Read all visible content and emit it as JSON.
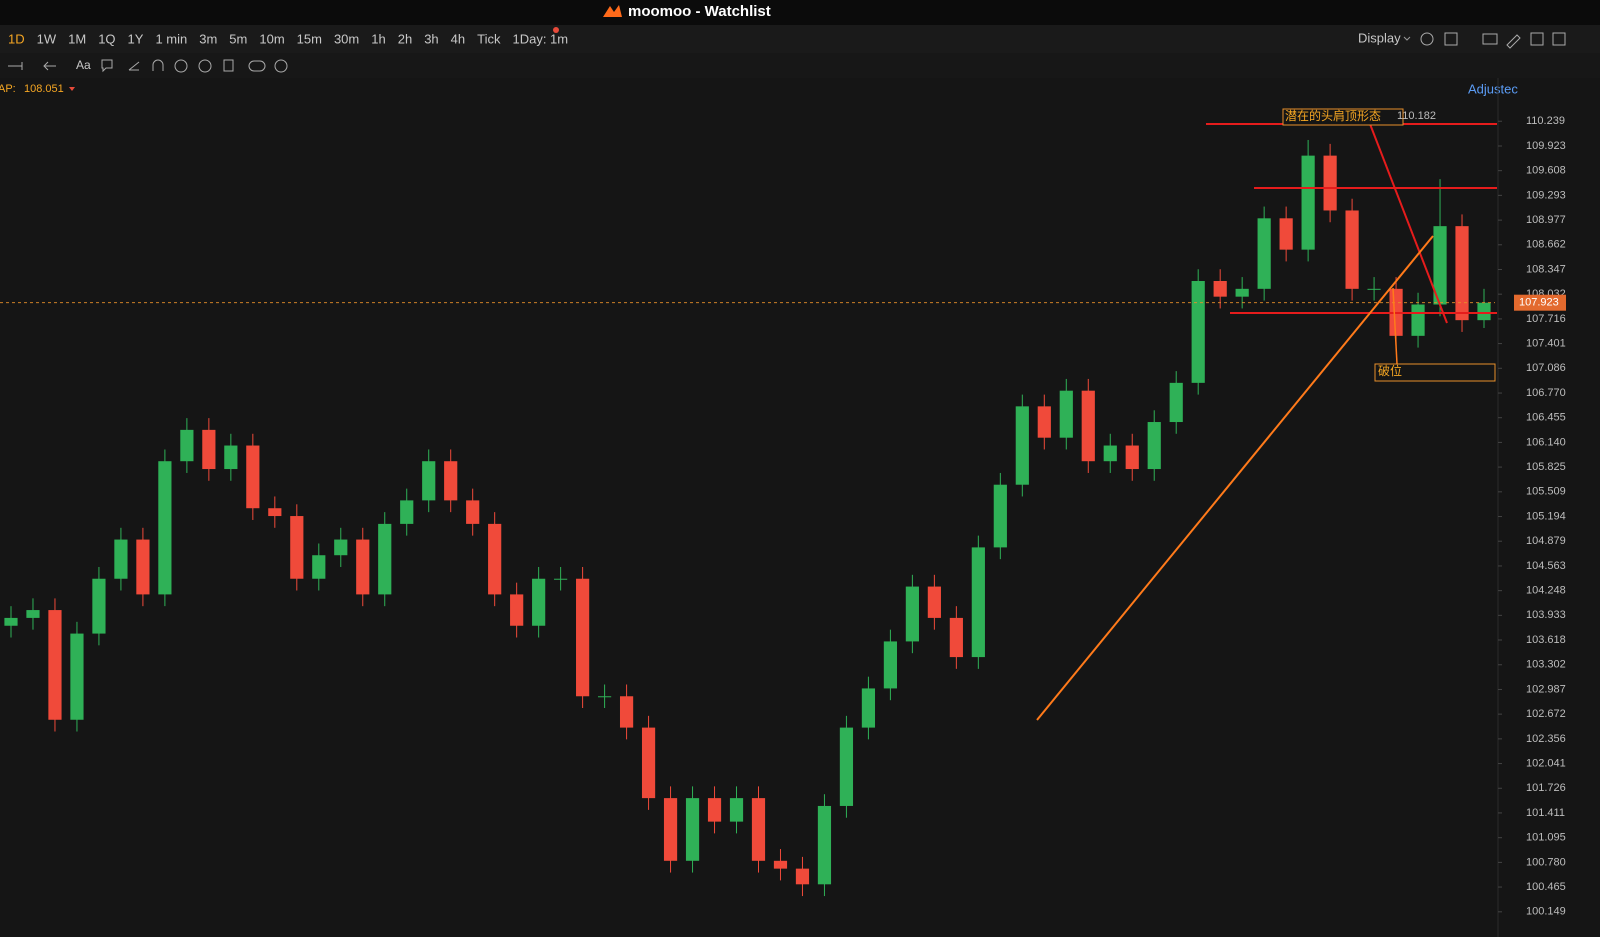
{
  "window": {
    "title": "moomoo - Watchlist"
  },
  "toolbar": {
    "periods": [
      "1D",
      "1W",
      "1M",
      "1Q",
      "1Y",
      "1 min",
      "3m",
      "5m",
      "10m",
      "15m",
      "30m",
      "1h",
      "2h",
      "3h",
      "4h",
      "Tick",
      "1Day: 1m"
    ],
    "display": "Display"
  },
  "indicator": {
    "label": "AP:",
    "value": "108.051"
  },
  "adjust": "Adjustec",
  "chart_data": {
    "type": "candlestick",
    "open": [
      103.8,
      103.9,
      104.0,
      102.6,
      103.7,
      104.4,
      104.9,
      104.2,
      105.9,
      106.3,
      105.8,
      106.1,
      105.3,
      105.2,
      104.4,
      104.7,
      104.9,
      104.2,
      105.1,
      105.4,
      105.9,
      105.4,
      105.1,
      104.2,
      103.8,
      104.4,
      104.4,
      102.9,
      102.9,
      102.5,
      101.6,
      100.8,
      101.6,
      101.3,
      101.6,
      100.8,
      100.7,
      100.5,
      101.5,
      102.5,
      103.0,
      103.6,
      104.3,
      103.9,
      103.4,
      104.8,
      105.6,
      106.6,
      106.2,
      106.8,
      105.9,
      106.1,
      105.8,
      106.4,
      106.9,
      108.2,
      108.0,
      108.1,
      109.0,
      108.6,
      109.8,
      109.1,
      108.1,
      108.1,
      107.5,
      107.9,
      108.9,
      107.7
    ],
    "high": [
      104.05,
      104.15,
      104.15,
      103.85,
      104.55,
      105.05,
      105.05,
      106.05,
      106.45,
      106.45,
      106.25,
      106.25,
      105.45,
      105.35,
      104.85,
      105.05,
      105.05,
      105.25,
      105.55,
      106.05,
      106.05,
      105.55,
      105.25,
      104.35,
      104.55,
      104.55,
      104.55,
      103.05,
      103.05,
      102.65,
      101.75,
      101.75,
      101.75,
      101.75,
      101.75,
      100.95,
      100.85,
      101.65,
      102.65,
      103.15,
      103.75,
      104.45,
      104.45,
      104.05,
      104.95,
      105.75,
      106.75,
      106.75,
      106.95,
      106.95,
      106.25,
      106.25,
      106.55,
      107.05,
      108.35,
      108.35,
      108.25,
      109.15,
      109.15,
      110.0,
      109.95,
      109.25,
      108.25,
      108.25,
      108.05,
      109.5,
      109.05,
      108.1
    ],
    "low": [
      103.65,
      103.75,
      102.45,
      102.45,
      103.55,
      104.25,
      104.05,
      104.05,
      105.75,
      105.65,
      105.65,
      105.15,
      105.05,
      104.25,
      104.25,
      104.55,
      104.05,
      104.05,
      104.95,
      105.25,
      105.25,
      104.95,
      104.05,
      103.65,
      103.65,
      104.25,
      102.75,
      102.75,
      102.35,
      101.45,
      100.65,
      100.65,
      101.15,
      101.15,
      100.65,
      100.55,
      100.35,
      100.35,
      101.35,
      102.35,
      102.85,
      103.45,
      103.75,
      103.25,
      103.25,
      104.65,
      105.45,
      106.05,
      106.05,
      105.75,
      105.75,
      105.65,
      105.65,
      106.25,
      106.75,
      107.85,
      107.85,
      107.95,
      108.45,
      108.45,
      108.95,
      107.95,
      107.95,
      107.35,
      107.35,
      107.75,
      107.55,
      107.6
    ],
    "close": [
      103.9,
      104.0,
      102.6,
      103.7,
      104.4,
      104.9,
      104.2,
      105.9,
      106.3,
      105.8,
      106.1,
      105.3,
      105.2,
      104.4,
      104.7,
      104.9,
      104.2,
      105.1,
      105.4,
      105.9,
      105.4,
      105.1,
      104.2,
      103.8,
      104.4,
      104.4,
      102.9,
      102.9,
      102.5,
      101.6,
      100.8,
      101.6,
      101.3,
      101.6,
      100.8,
      100.7,
      100.5,
      101.5,
      102.5,
      103.0,
      103.6,
      104.3,
      103.9,
      103.4,
      104.8,
      105.6,
      106.6,
      106.2,
      106.8,
      105.9,
      106.1,
      105.8,
      106.4,
      106.9,
      108.2,
      108.0,
      108.1,
      109.0,
      108.6,
      109.8,
      109.1,
      108.1,
      108.1,
      107.5,
      107.9,
      108.9,
      107.7,
      107.923
    ],
    "up_color": "#2fb157",
    "down_color": "#f04a3a",
    "ylim": [
      100.07,
      110.51
    ],
    "yticks": [
      110.239,
      109.923,
      109.608,
      109.293,
      108.977,
      108.662,
      108.347,
      108.032,
      107.716,
      107.401,
      107.086,
      {
        "value": 106.77,
        "label": "106.770"
      },
      106.455,
      {
        "value": 106.14,
        "label": "106.140"
      },
      105.825,
      105.509,
      105.194,
      104.879,
      104.563,
      104.248,
      103.933,
      103.618,
      103.302,
      102.987,
      102.672,
      102.356,
      102.041,
      101.726,
      101.411,
      101.095,
      {
        "value": 100.78,
        "label": "100.780"
      },
      100.465,
      100.149
    ],
    "last_price": 107.923,
    "annotations": [
      "潜在的头肩顶形态",
      "110.182",
      "破位"
    ]
  }
}
